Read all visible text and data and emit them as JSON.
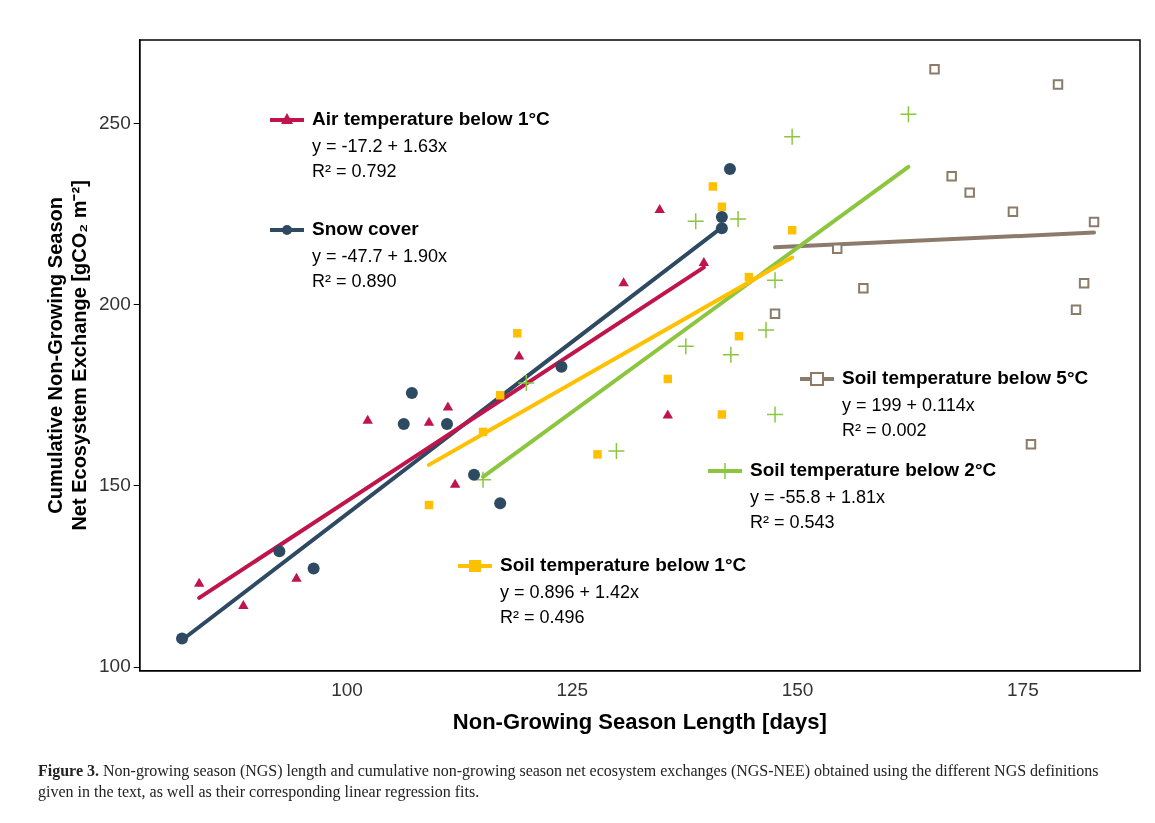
{
  "chart_data": {
    "type": "scatter",
    "xlabel": "Non-Growing Season Length [days]",
    "ylabel": "Cumulative Non-Growing Season\nNet Ecosystem Exchange [gCO₂ m⁻²]",
    "xlim": [
      77,
      188
    ],
    "ylim": [
      99,
      273
    ],
    "xticks": [
      100,
      125,
      150,
      175
    ],
    "yticks": [
      100,
      150,
      200,
      250
    ],
    "grid": false,
    "legend": "top left",
    "series": [
      {
        "name": "Air temperature below 1°C",
        "color": "#c0144c",
        "marker": "triangle",
        "x": [
          83.6,
          88.5,
          94.4,
          102.3,
          109.1,
          111.2,
          112.0,
          119.1,
          130.7,
          134.7,
          135.6,
          139.6
        ],
        "values": [
          123.0,
          116.9,
          124.4,
          168.0,
          167.4,
          171.6,
          150.3,
          185.7,
          205.9,
          226.1,
          169.4,
          211.5
        ]
      },
      {
        "name": "Snow cover",
        "color": "#2e4a62",
        "marker": "circle",
        "x": [
          81.7,
          92.5,
          96.3,
          106.3,
          107.2,
          111.1,
          114.1,
          117.0,
          123.8,
          141.6,
          141.6,
          142.5
        ],
        "values": [
          107.9,
          132.0,
          127.2,
          167.1,
          175.6,
          167.1,
          153.1,
          145.2,
          182.9,
          224.2,
          221.1,
          237.4
        ]
      },
      {
        "name": "Soil temperature below 1°C",
        "color": "#ffc000",
        "marker": "square",
        "x": [
          109.1,
          118.9,
          117.0,
          115.1,
          127.8,
          135.6,
          140.6,
          141.6,
          149.4,
          144.6,
          143.5,
          141.6
        ],
        "values": [
          144.7,
          192.1,
          175.0,
          164.9,
          158.7,
          179.5,
          232.6,
          227.0,
          220.5,
          207.6,
          191.3,
          169.7
        ]
      },
      {
        "name": "Soil temperature below 2°C",
        "color": "#8cc63f",
        "marker": "cross",
        "x": [
          138.7,
          143.4,
          147.5,
          146.5,
          137.6,
          142.6,
          147.5,
          129.9,
          115.1,
          119.9,
          149.4,
          162.3
        ],
        "values": [
          223.0,
          223.6,
          206.7,
          193.0,
          188.5,
          186.2,
          169.7,
          159.6,
          151.7,
          178.4,
          246.3,
          252.5
        ]
      },
      {
        "name": "Soil temperature below 5°C",
        "color": "#8c7b6b",
        "marker": "square",
        "x": [
          165.2,
          178.9,
          167.1,
          169.1,
          173.9,
          182.9,
          154.4,
          157.3,
          147.5,
          181.8,
          180.9,
          175.9
        ],
        "values": [
          264.9,
          260.7,
          235.4,
          230.9,
          225.6,
          222.8,
          215.4,
          204.5,
          197.5,
          205.9,
          198.6,
          161.5
        ]
      },
      {
        "type": "line",
        "color": "#c0144c",
        "x": [
          83.6,
          139.6
        ],
        "values": [
          119.1,
          210.3
        ]
      },
      {
        "type": "line",
        "color": "#2e4a62",
        "x": [
          81.7,
          141.6
        ],
        "values": [
          107.5,
          221.3
        ]
      },
      {
        "type": "line",
        "color": "#ffc000",
        "x": [
          109.1,
          149.4
        ],
        "values": [
          155.8,
          213.0
        ]
      },
      {
        "type": "line",
        "color": "#8cc63f",
        "x": [
          115.1,
          162.3
        ],
        "values": [
          152.5,
          238.0
        ]
      },
      {
        "type": "line",
        "color": "#8c7b6b",
        "x": [
          147.5,
          182.9
        ],
        "values": [
          215.8,
          219.9
        ]
      }
    ],
    "annotations": [
      "y = -17.2 + 1.63x",
      "R² = 0.792",
      "y = -47.7 + 1.90x",
      "R² = 0.890",
      "y = 0.896 + 1.42x",
      "R² = 0.496",
      "y = -55.8 + 1.81x",
      "R² = 0.543",
      "y = 199 + 0.114x",
      "R² = 0.002",
      "Figure 3. Non-growing season (NGS) length and cumulative non-growing season net ecosystem exchanges (NGS-NEE) obtained using the different NGS definitions given in the text, as well as their corresponding linear regression fits."
    ]
  }
}
